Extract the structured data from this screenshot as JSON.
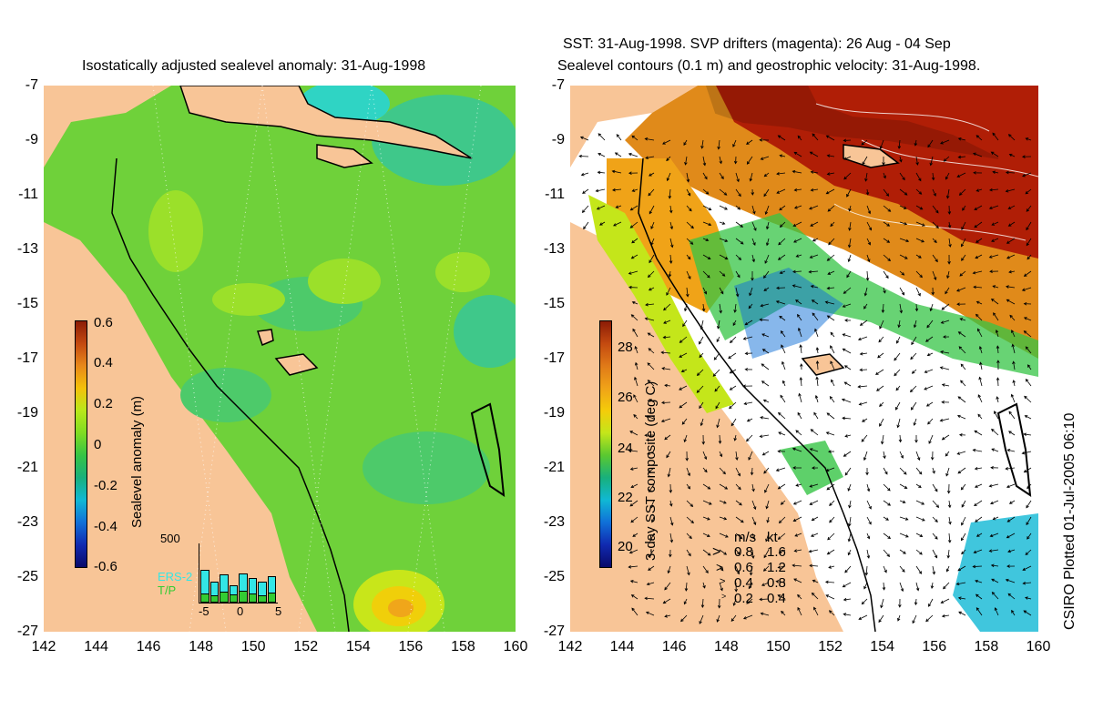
{
  "left_panel": {
    "title": "Isostatically adjusted sealevel anomaly: 31-Aug-1998",
    "colorbar": {
      "label": "Sealevel anomaly (m)",
      "ticks": [
        "0.6",
        "0.4",
        "0.2",
        "0",
        "-0.2",
        "-0.4",
        "-0.6"
      ],
      "colors": [
        "#8c1c06",
        "#c44a10",
        "#e8891a",
        "#f4c10a",
        "#b8e81a",
        "#7fdc22",
        "#36c445",
        "#18b07c",
        "#10b8d4",
        "#1070d8",
        "#102ab0",
        "#0a0a6a"
      ]
    },
    "inset": {
      "ymax_label": "500",
      "series": [
        "ERS-2",
        "T/P"
      ],
      "series_colors": [
        "#33e6e6",
        "#33cc33"
      ],
      "xticks": [
        "-5",
        "0",
        "5"
      ]
    }
  },
  "right_panel": {
    "title_line1": "SST: 31-Aug-1998. SVP drifters (magenta): 26 Aug - 04 Sep",
    "title_line2": "Sealevel contours (0.1 m) and geostrophic velocity: 31-Aug-1998.",
    "colorbar": {
      "label": "3-day SST composite (deg C)",
      "ticks": [
        "28",
        "26",
        "24",
        "22",
        "20"
      ],
      "colors": [
        "#8c1c06",
        "#c44a10",
        "#e07a18",
        "#f0a318",
        "#f4cc0a",
        "#c4e61a",
        "#5ac830",
        "#18b07c",
        "#10b8d4",
        "#1070d8",
        "#102ab0",
        "#0a0a6a"
      ]
    },
    "velocity_legend": {
      "headers": [
        "m/s",
        "kt"
      ],
      "rows": [
        [
          "0.8",
          "1.6"
        ],
        [
          "0.6",
          "1.2"
        ],
        [
          "0.4",
          "0.8"
        ],
        [
          "0.2",
          "0.4"
        ]
      ]
    }
  },
  "axes": {
    "y_ticks": [
      "-7",
      "-9",
      "-11",
      "-13",
      "-15",
      "-17",
      "-19",
      "-21",
      "-23",
      "-25",
      "-27"
    ],
    "x_ticks": [
      "142",
      "144",
      "146",
      "148",
      "150",
      "152",
      "154",
      "156",
      "158",
      "160"
    ]
  },
  "side_label": "CSIRO Plotted 01-Jul-2005 06:10",
  "colors": {
    "land": "#f8c597",
    "ocean_green": "#6fd13a",
    "warm": "#e08a1a",
    "hot": "#b01e06"
  }
}
